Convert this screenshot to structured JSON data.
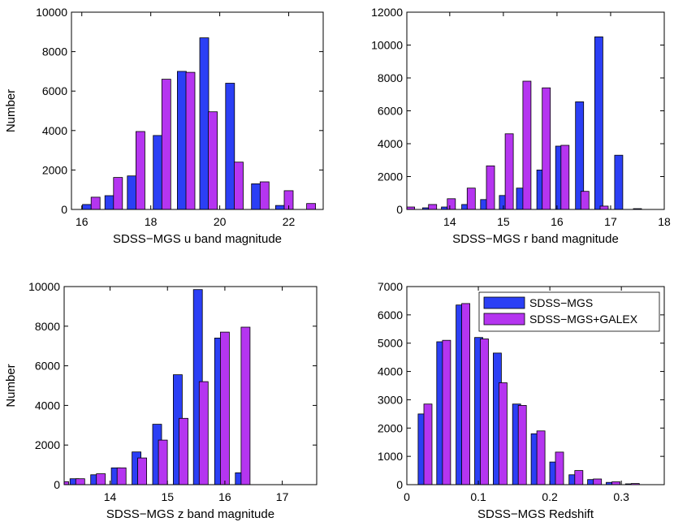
{
  "colors": {
    "series_a": "#2b3ff5",
    "series_b": "#b535f0"
  },
  "chart_data": [
    {
      "type": "bar",
      "xlabel": "SDSS−MGS u band magnitude",
      "ylabel": "Number",
      "xlim": [
        15.7,
        23.0
      ],
      "ylim": [
        0,
        10000
      ],
      "xticks": [
        16,
        18,
        20,
        22
      ],
      "yticks": [
        0,
        2000,
        4000,
        6000,
        8000,
        10000
      ],
      "grid": false,
      "series": [
        {
          "x": [
            16.15,
            16.8,
            17.45,
            18.2,
            18.9,
            19.55,
            20.3,
            21.05,
            21.75
          ],
          "values": [
            250,
            700,
            1700,
            3750,
            7000,
            8700,
            6400,
            1300,
            200
          ]
        },
        {
          "x": [
            16.4,
            17.05,
            17.7,
            18.45,
            19.15,
            19.8,
            20.55,
            21.3,
            22.0,
            22.65
          ],
          "values": [
            620,
            1620,
            3950,
            6600,
            6950,
            4950,
            2400,
            1400,
            950,
            300
          ]
        }
      ]
    },
    {
      "type": "bar",
      "xlabel": "SDSS−MGS r band magnitude",
      "ylabel": "",
      "xlim": [
        13.2,
        18.0
      ],
      "ylim": [
        0,
        12000
      ],
      "xticks": [
        14,
        15,
        16,
        17,
        18
      ],
      "yticks": [
        0,
        2000,
        4000,
        6000,
        8000,
        10000,
        12000
      ],
      "grid": false,
      "series": [
        {
          "x": [
            13.57,
            13.92,
            14.3,
            14.65,
            15.0,
            15.32,
            15.7,
            16.05,
            16.42,
            16.78,
            17.15,
            17.5
          ],
          "values": [
            100,
            150,
            300,
            600,
            850,
            1300,
            2400,
            3850,
            6550,
            10500,
            3300,
            50
          ]
        },
        {
          "x": [
            13.27,
            13.68,
            14.03,
            14.4,
            14.76,
            15.11,
            15.44,
            15.8,
            16.15,
            16.52,
            16.88,
            17.25
          ],
          "values": [
            150,
            300,
            650,
            1300,
            2650,
            4600,
            7800,
            7400,
            3900,
            1100,
            200,
            0
          ]
        }
      ]
    },
    {
      "type": "bar",
      "xlabel": "SDSS−MGS z band magnitude",
      "ylabel": "Number",
      "xlim": [
        13.2,
        17.6
      ],
      "ylim": [
        0,
        10000
      ],
      "xticks": [
        14,
        15,
        16,
        17
      ],
      "yticks": [
        0,
        2000,
        4000,
        6000,
        8000,
        10000
      ],
      "grid": false,
      "series": [
        {
          "x": [
            13.38,
            13.74,
            14.1,
            14.46,
            14.82,
            15.18,
            15.53,
            15.9,
            16.26,
            16.62,
            17.0
          ],
          "values": [
            300,
            500,
            850,
            1650,
            3050,
            5550,
            9850,
            7400,
            600,
            0,
            0
          ]
        },
        {
          "x": [
            13.2,
            13.48,
            13.84,
            14.2,
            14.56,
            14.92,
            15.28,
            15.63,
            16.0,
            16.36,
            16.72,
            17.1
          ],
          "values": [
            150,
            300,
            550,
            850,
            1350,
            2250,
            3350,
            5200,
            7700,
            7950,
            0,
            0
          ]
        }
      ]
    },
    {
      "type": "bar",
      "xlabel": "SDSS−MGS Redshift",
      "ylabel": "",
      "xlim": [
        0,
        0.36
      ],
      "ylim": [
        0,
        7000
      ],
      "xticks": [
        0,
        0.1,
        0.2,
        0.3
      ],
      "xtick_labels": [
        "0",
        "0.1",
        "0.2",
        "0.3"
      ],
      "yticks": [
        0,
        1000,
        2000,
        3000,
        4000,
        5000,
        6000,
        7000
      ],
      "grid": false,
      "legend_position": "top-right",
      "series": [
        {
          "name": "SDSS−MGS",
          "x": [
            0.0215,
            0.0475,
            0.0745,
            0.1005,
            0.1265,
            0.1535,
            0.1795,
            0.2055,
            0.2325,
            0.2585,
            0.2845,
            0.3115
          ],
          "values": [
            2500,
            5050,
            6350,
            5200,
            4650,
            2850,
            1800,
            800,
            350,
            180,
            80,
            30
          ]
        },
        {
          "name": "SDSS−MGS+GALEX",
          "x": [
            0.0295,
            0.0555,
            0.0825,
            0.1085,
            0.1345,
            0.1615,
            0.1875,
            0.2135,
            0.2405,
            0.2665,
            0.2925,
            0.3195
          ],
          "values": [
            2850,
            5100,
            6400,
            5150,
            3600,
            2800,
            1900,
            1150,
            500,
            200,
            100,
            40
          ]
        }
      ]
    }
  ]
}
